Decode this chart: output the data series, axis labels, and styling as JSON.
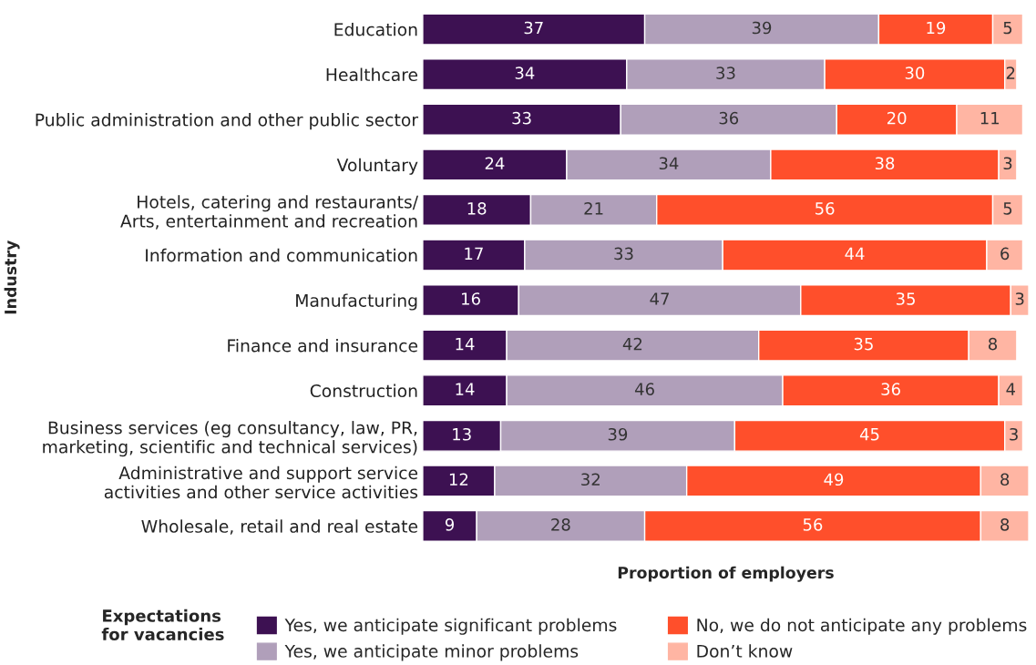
{
  "chart_data": {
    "type": "bar",
    "orientation": "horizontal",
    "stacked": true,
    "data_labels": true,
    "tick_labels": "y",
    "grid": false,
    "legend": "bottom",
    "xlabel": "Proportion of employers",
    "ylabel": "Industry",
    "legend_title": "Expectations\nfor vacancies",
    "categories": [
      "Education",
      "Healthcare",
      "Public administration and other public sector",
      "Voluntary",
      "Hotels, catering and restaurants/\nArts, entertainment and recreation",
      "Information and communication",
      "Manufacturing",
      "Finance and insurance",
      "Construction",
      "Business services (eg consultancy, law, PR,\nmarketing, scientific and technical services)",
      "Administrative and support service\nactivities and other service activities",
      "Wholesale, retail and real estate"
    ],
    "series": [
      {
        "name": "Yes, we anticipate significant problems",
        "color": "#3d1152",
        "values": [
          37,
          34,
          33,
          24,
          18,
          17,
          16,
          14,
          14,
          13,
          12,
          9
        ]
      },
      {
        "name": "Yes, we anticipate minor problems",
        "color": "#b09fba",
        "values": [
          39,
          33,
          36,
          34,
          21,
          33,
          47,
          42,
          46,
          39,
          32,
          28
        ]
      },
      {
        "name": "No, we do not anticipate any problems",
        "color": "#ff4f2b",
        "values": [
          19,
          30,
          20,
          38,
          56,
          44,
          35,
          35,
          36,
          45,
          49,
          56
        ]
      },
      {
        "name": "Don’t know",
        "color": "#ffb5a3",
        "values": [
          5,
          2,
          11,
          3,
          5,
          6,
          3,
          8,
          4,
          3,
          8,
          8
        ]
      }
    ]
  }
}
